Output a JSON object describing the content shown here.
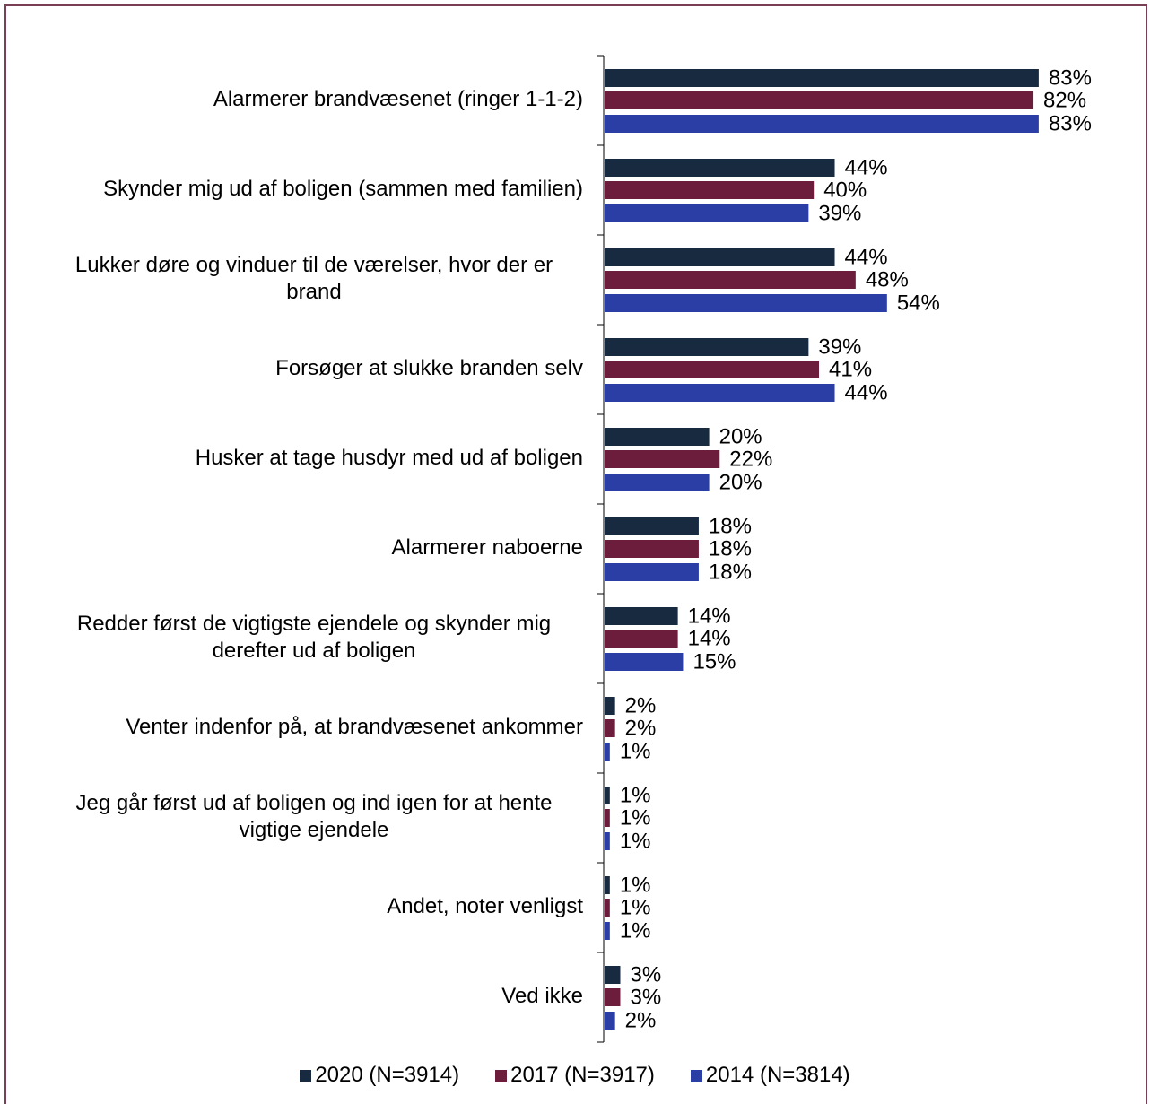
{
  "chart_data": {
    "type": "hbar",
    "categories": [
      "Alarmerer brandvæsenet (ringer 1-1-2)",
      "Skynder mig ud af boligen (sammen med familien)",
      "Lukker døre og vinduer til de værelser, hvor der er brand",
      "Forsøger at slukke branden selv",
      "Husker at tage husdyr med ud af boligen",
      "Alarmerer naboerne",
      "Redder først de vigtigste ejendele og skynder mig derefter ud af boligen",
      "Venter indenfor på, at brandvæsenet ankommer",
      "Jeg går først ud af boligen og ind igen for at hente vigtige ejendele",
      "Andet, noter venligst",
      "Ved ikke"
    ],
    "series": [
      {
        "name": "2020 (N=3914)",
        "color": "#172a40",
        "values": [
          83,
          44,
          44,
          39,
          20,
          18,
          14,
          2,
          1,
          1,
          3
        ],
        "value_labels": [
          "83%",
          "44%",
          "44%",
          "39%",
          "20%",
          "18%",
          "14%",
          "2%",
          "1%",
          "1%",
          "3%"
        ]
      },
      {
        "name": "2017 (N=3917)",
        "color": "#6b1d3b",
        "values": [
          82,
          40,
          48,
          41,
          22,
          18,
          14,
          2,
          1,
          1,
          3
        ],
        "value_labels": [
          "82%",
          "40%",
          "48%",
          "41%",
          "22%",
          "18%",
          "14%",
          "2%",
          "1%",
          "1%",
          "3%"
        ]
      },
      {
        "name": "2014 (N=3814)",
        "color": "#2b3ea6",
        "values": [
          83,
          39,
          54,
          44,
          20,
          18,
          15,
          1,
          1,
          1,
          2
        ],
        "value_labels": [
          "83%",
          "39%",
          "54%",
          "44%",
          "20%",
          "18%",
          "15%",
          "1%",
          "1%",
          "1%",
          "2%"
        ]
      }
    ],
    "legend": "bottom"
  }
}
